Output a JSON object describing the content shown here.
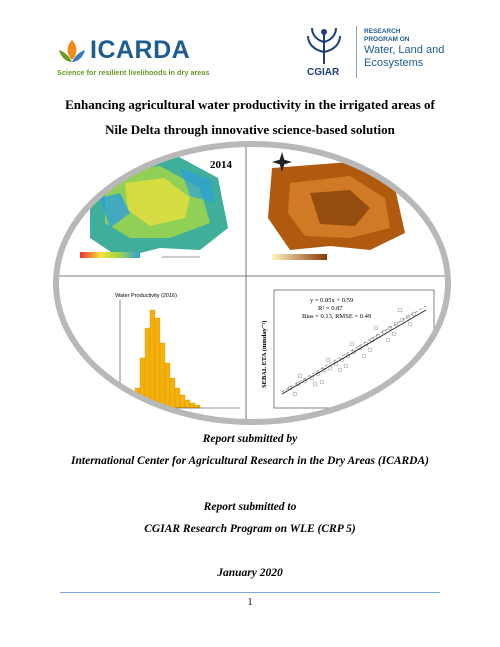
{
  "logo_left": {
    "name": "ICARDA",
    "tagline": "Science for resilient livelihoods in dry areas"
  },
  "logo_right": {
    "cgiar": "CGIAR",
    "program_lines": [
      "RESEARCH",
      "PROGRAM ON"
    ],
    "wle_lines": [
      "Water, Land and",
      "Ecosystems"
    ]
  },
  "title_lines": [
    "Enhancing agricultural water productivity in the irrigated areas of",
    "Nile Delta through innovative science-based solution"
  ],
  "figure": {
    "map_year_label": "2014",
    "histogram_title": "Water Productivity (2016)",
    "scatter_equation": "y = 0.85x + 0.59",
    "scatter_r2": "R² = 0.87",
    "scatter_stats": "Bias = 0.13, RMSE = 0.49",
    "scatter_ylabel": "SEBAL ETA (mmday⁻¹)",
    "colors": {
      "map_low": "#2e9fd9",
      "map_mid": "#9fd64a",
      "map_high": "#f2e33a",
      "hist_bar": "#f4b10c",
      "eta_map": "#b05a10"
    }
  },
  "submitted_by_label": "Report submitted by",
  "submitted_by": "International Center for Agricultural Research in the Dry Areas (ICARDA)",
  "submitted_to_label": "Report submitted to",
  "submitted_to": "CGIAR Research Program on WLE (CRP 5)",
  "date": "January 2020",
  "page_number": "1"
}
